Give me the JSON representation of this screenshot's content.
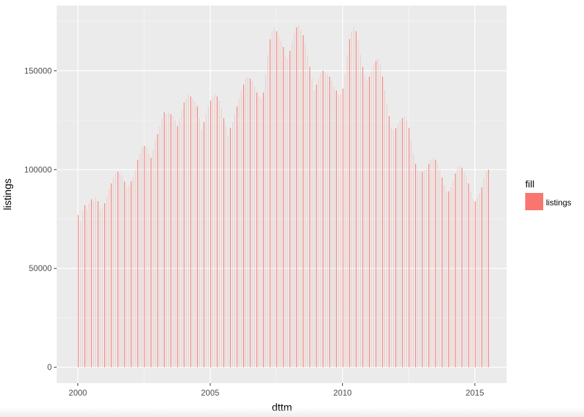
{
  "chart_data": {
    "type": "bar",
    "xlabel": "dttm",
    "ylabel": "listings",
    "xlim": [
      1999.2,
      2016.2
    ],
    "ylim": [
      -8000,
      183000
    ],
    "x_ticks": [
      2000,
      2005,
      2010,
      2015
    ],
    "x_tick_labels": [
      "2000",
      "2005",
      "2010",
      "2015"
    ],
    "y_ticks": [
      0,
      50000,
      100000,
      150000
    ],
    "y_tick_labels": [
      "0",
      "50000",
      "100000",
      "150000"
    ],
    "grid": true,
    "bar_color": "#F8766D",
    "panel_background": "#EBEBEB",
    "legend": {
      "title": "fill",
      "items": [
        {
          "label": "listings",
          "color": "#F8766D"
        }
      ],
      "position": "right"
    },
    "start": {
      "year": 2000,
      "month": 1
    },
    "values": [
      77000,
      74000,
      79000,
      82000,
      80000,
      83000,
      85000,
      84000,
      86000,
      84000,
      80000,
      81000,
      83000,
      86000,
      90000,
      93000,
      96000,
      98000,
      99000,
      98000,
      97000,
      94000,
      91000,
      92000,
      94000,
      96000,
      100000,
      105000,
      108000,
      111000,
      112000,
      111000,
      108000,
      106000,
      110000,
      115000,
      118000,
      122000,
      126000,
      129000,
      128000,
      129000,
      128000,
      127000,
      125000,
      122000,
      126000,
      130000,
      134000,
      136000,
      138000,
      137000,
      136000,
      134000,
      132000,
      126000,
      120000,
      124000,
      128000,
      132000,
      135000,
      137000,
      138000,
      137000,
      135000,
      131000,
      126000,
      122000,
      117000,
      121000,
      124000,
      128000,
      132000,
      136000,
      140000,
      143000,
      146000,
      147000,
      146000,
      145000,
      142000,
      139000,
      137000,
      136000,
      139000,
      148000,
      158000,
      166000,
      170000,
      172000,
      170000,
      168000,
      165000,
      162000,
      158000,
      156000,
      160000,
      165000,
      169000,
      172000,
      173000,
      171000,
      168000,
      164000,
      158000,
      152000,
      146000,
      140000,
      143000,
      146000,
      149000,
      150000,
      149000,
      148000,
      147000,
      145000,
      142000,
      140000,
      138000,
      138000,
      141000,
      148000,
      158000,
      166000,
      170000,
      172000,
      170000,
      165000,
      158000,
      152000,
      147000,
      145000,
      147000,
      150000,
      153000,
      155000,
      156000,
      153000,
      147000,
      140000,
      133000,
      127000,
      121000,
      120000,
      121000,
      123000,
      125000,
      126000,
      127000,
      125000,
      121000,
      115000,
      108000,
      103000,
      100000,
      99000,
      99000,
      100000,
      101000,
      103000,
      105000,
      106000,
      105000,
      103000,
      100000,
      96000,
      92000,
      89000,
      89000,
      91000,
      94000,
      98000,
      101000,
      102000,
      101000,
      99000,
      97000,
      93000,
      89000,
      85000,
      84000,
      86000,
      88000,
      91000,
      96000,
      99000,
      100000
    ]
  }
}
